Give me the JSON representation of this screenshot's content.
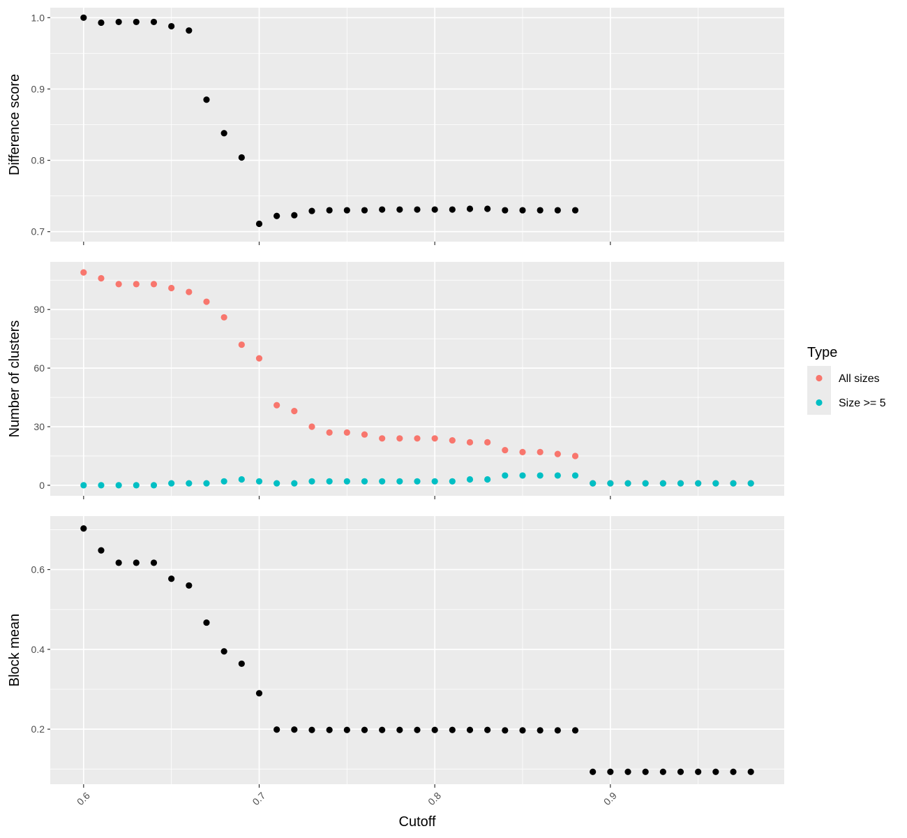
{
  "chart_data": {
    "type": "scatter",
    "shared_x": {
      "label": "Cutoff",
      "range": [
        0.581,
        0.999
      ],
      "ticks": [
        0.6,
        0.7,
        0.8,
        0.9
      ],
      "tick_labels": [
        "0.6",
        "0.7",
        "0.8",
        "0.9"
      ]
    },
    "panels": [
      {
        "ylabel": "Difference score",
        "ylim": [
          0.686,
          1.014
        ],
        "y_ticks": [
          0.7,
          0.8,
          0.9,
          1.0
        ],
        "y_tick_labels": [
          "0.7",
          "0.8",
          "0.9",
          "1.0"
        ],
        "series": [
          {
            "color": "#000000",
            "points": [
              [
                0.6,
                1.0
              ],
              [
                0.61,
                0.993
              ],
              [
                0.62,
                0.994
              ],
              [
                0.63,
                0.994
              ],
              [
                0.64,
                0.994
              ],
              [
                0.65,
                0.988
              ],
              [
                0.66,
                0.982
              ],
              [
                0.67,
                0.885
              ],
              [
                0.68,
                0.838
              ],
              [
                0.69,
                0.804
              ],
              [
                0.7,
                0.711
              ],
              [
                0.71,
                0.722
              ],
              [
                0.72,
                0.723
              ],
              [
                0.73,
                0.729
              ],
              [
                0.74,
                0.73
              ],
              [
                0.75,
                0.73
              ],
              [
                0.76,
                0.73
              ],
              [
                0.77,
                0.731
              ],
              [
                0.78,
                0.731
              ],
              [
                0.79,
                0.731
              ],
              [
                0.8,
                0.731
              ],
              [
                0.81,
                0.731
              ],
              [
                0.82,
                0.732
              ],
              [
                0.83,
                0.732
              ],
              [
                0.84,
                0.73
              ],
              [
                0.85,
                0.73
              ],
              [
                0.86,
                0.73
              ],
              [
                0.87,
                0.73
              ],
              [
                0.88,
                0.73
              ]
            ]
          }
        ]
      },
      {
        "ylabel": "Number of clusters",
        "ylim": [
          -5.4,
          114.4
        ],
        "y_ticks": [
          0,
          30,
          60,
          90
        ],
        "y_tick_labels": [
          "0",
          "30",
          "60",
          "90"
        ],
        "series": [
          {
            "name": "All sizes",
            "color": "#F8766D",
            "points": [
              [
                0.6,
                109
              ],
              [
                0.61,
                106
              ],
              [
                0.62,
                103
              ],
              [
                0.63,
                103
              ],
              [
                0.64,
                103
              ],
              [
                0.65,
                101
              ],
              [
                0.66,
                99
              ],
              [
                0.67,
                94
              ],
              [
                0.68,
                86
              ],
              [
                0.69,
                72
              ],
              [
                0.7,
                65
              ],
              [
                0.71,
                41
              ],
              [
                0.72,
                38
              ],
              [
                0.73,
                30
              ],
              [
                0.74,
                27
              ],
              [
                0.75,
                27
              ],
              [
                0.76,
                26
              ],
              [
                0.77,
                24
              ],
              [
                0.78,
                24
              ],
              [
                0.79,
                24
              ],
              [
                0.8,
                24
              ],
              [
                0.81,
                23
              ],
              [
                0.82,
                22
              ],
              [
                0.83,
                22
              ],
              [
                0.84,
                18
              ],
              [
                0.85,
                17
              ],
              [
                0.86,
                17
              ],
              [
                0.87,
                16
              ],
              [
                0.88,
                15
              ],
              [
                0.89,
                1
              ],
              [
                0.9,
                1
              ],
              [
                0.91,
                1
              ],
              [
                0.92,
                1
              ],
              [
                0.93,
                1
              ],
              [
                0.94,
                1
              ],
              [
                0.95,
                1
              ],
              [
                0.96,
                1
              ],
              [
                0.97,
                1
              ],
              [
                0.98,
                1
              ]
            ]
          },
          {
            "name": "Size >= 5",
            "color": "#00BFC4",
            "points": [
              [
                0.6,
                0
              ],
              [
                0.61,
                0
              ],
              [
                0.62,
                0
              ],
              [
                0.63,
                0
              ],
              [
                0.64,
                0
              ],
              [
                0.65,
                1
              ],
              [
                0.66,
                1
              ],
              [
                0.67,
                1
              ],
              [
                0.68,
                2
              ],
              [
                0.69,
                3
              ],
              [
                0.7,
                2
              ],
              [
                0.71,
                1
              ],
              [
                0.72,
                1
              ],
              [
                0.73,
                2
              ],
              [
                0.74,
                2
              ],
              [
                0.75,
                2
              ],
              [
                0.76,
                2
              ],
              [
                0.77,
                2
              ],
              [
                0.78,
                2
              ],
              [
                0.79,
                2
              ],
              [
                0.8,
                2
              ],
              [
                0.81,
                2
              ],
              [
                0.82,
                3
              ],
              [
                0.83,
                3
              ],
              [
                0.84,
                5
              ],
              [
                0.85,
                5
              ],
              [
                0.86,
                5
              ],
              [
                0.87,
                5
              ],
              [
                0.88,
                5
              ],
              [
                0.89,
                1
              ],
              [
                0.9,
                1
              ],
              [
                0.91,
                1
              ],
              [
                0.92,
                1
              ],
              [
                0.93,
                1
              ],
              [
                0.94,
                1
              ],
              [
                0.95,
                1
              ],
              [
                0.96,
                1
              ],
              [
                0.97,
                1
              ],
              [
                0.98,
                1
              ]
            ]
          }
        ]
      },
      {
        "ylabel": "Block mean",
        "ylim": [
          0.062,
          0.734
        ],
        "y_ticks": [
          0.2,
          0.4,
          0.6
        ],
        "y_tick_labels": [
          "0.2",
          "0.4",
          "0.6"
        ],
        "series": [
          {
            "color": "#000000",
            "points": [
              [
                0.6,
                0.703
              ],
              [
                0.61,
                0.648
              ],
              [
                0.62,
                0.617
              ],
              [
                0.63,
                0.617
              ],
              [
                0.64,
                0.617
              ],
              [
                0.65,
                0.577
              ],
              [
                0.66,
                0.56
              ],
              [
                0.67,
                0.467
              ],
              [
                0.68,
                0.395
              ],
              [
                0.69,
                0.364
              ],
              [
                0.7,
                0.29
              ],
              [
                0.71,
                0.199
              ],
              [
                0.72,
                0.199
              ],
              [
                0.73,
                0.198
              ],
              [
                0.74,
                0.198
              ],
              [
                0.75,
                0.198
              ],
              [
                0.76,
                0.198
              ],
              [
                0.77,
                0.198
              ],
              [
                0.78,
                0.198
              ],
              [
                0.79,
                0.198
              ],
              [
                0.8,
                0.198
              ],
              [
                0.81,
                0.198
              ],
              [
                0.82,
                0.198
              ],
              [
                0.83,
                0.198
              ],
              [
                0.84,
                0.197
              ],
              [
                0.85,
                0.197
              ],
              [
                0.86,
                0.197
              ],
              [
                0.87,
                0.197
              ],
              [
                0.88,
                0.197
              ],
              [
                0.89,
                0.093
              ],
              [
                0.9,
                0.093
              ],
              [
                0.91,
                0.093
              ],
              [
                0.92,
                0.093
              ],
              [
                0.93,
                0.093
              ],
              [
                0.94,
                0.093
              ],
              [
                0.95,
                0.093
              ],
              [
                0.96,
                0.093
              ],
              [
                0.97,
                0.093
              ],
              [
                0.98,
                0.093
              ]
            ]
          }
        ]
      }
    ],
    "legend": {
      "title": "Type",
      "placement": "right",
      "entries": [
        {
          "label": "All sizes",
          "color": "#F8766D"
        },
        {
          "label": "Size >= 5",
          "color": "#00BFC4"
        }
      ]
    },
    "grid": true,
    "panel_background": "#EBEBEB",
    "grid_color": "#FFFFFF"
  }
}
